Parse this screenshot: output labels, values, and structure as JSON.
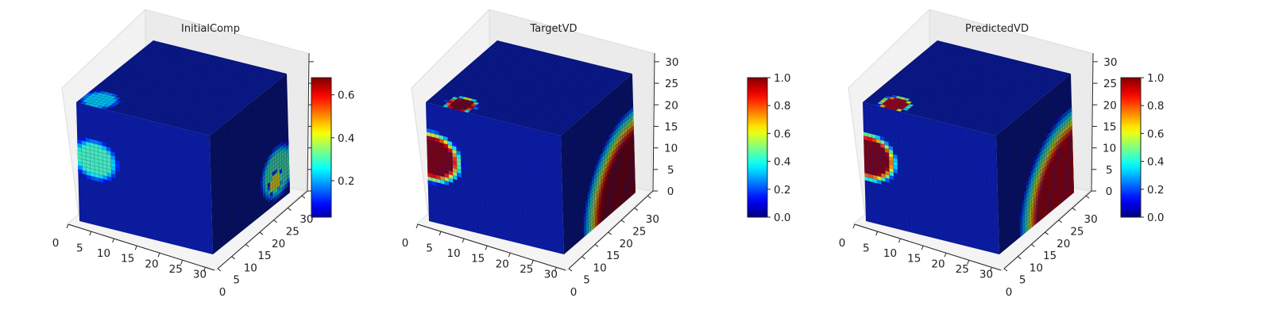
{
  "figure": {
    "colormap": "jet",
    "colors": {
      "background": "#ffffff",
      "cube_base": "#0a1a9a",
      "pane": "#f2f2f2",
      "grid": "#d4d4d4"
    }
  },
  "chart_data": [
    {
      "type": "heatmap",
      "plot_kind": "3d-voxel",
      "title": "InitialComp",
      "x_ticks": [
        "0",
        "5",
        "10",
        "15",
        "20",
        "25",
        "30"
      ],
      "y_ticks": [
        "0",
        "5",
        "10",
        "15",
        "20",
        "25",
        "30"
      ],
      "z_ticks": [],
      "xlim": [
        0,
        32
      ],
      "ylim": [
        0,
        32
      ],
      "zlim": [
        0,
        32
      ],
      "colorbar": {
        "range": [
          0.03,
          0.68
        ],
        "ticks": [
          "0.2",
          "0.4",
          "0.6"
        ],
        "tick_values": [
          0.2,
          0.4,
          0.6
        ]
      },
      "grid": true,
      "features": [
        {
          "face": "front",
          "u": 0.13,
          "v": 0.45,
          "radius": 0.16,
          "value": 0.45
        },
        {
          "face": "top",
          "u": 0.12,
          "v": 0.9,
          "radius": 0.12,
          "value": 0.35
        },
        {
          "face": "right",
          "u": 0.85,
          "v": 0.75,
          "radius": 0.2,
          "value": 0.45
        },
        {
          "face": "right",
          "u": 0.82,
          "v": 0.82,
          "radius": 0.08,
          "value": 0.66
        }
      ]
    },
    {
      "type": "heatmap",
      "plot_kind": "3d-voxel",
      "title": "TargetVD",
      "x_ticks": [
        "0",
        "5",
        "10",
        "15",
        "20",
        "25",
        "30"
      ],
      "y_ticks": [
        "0",
        "5",
        "10",
        "15",
        "20",
        "25",
        "30"
      ],
      "z_ticks": [
        "0",
        "5",
        "10",
        "15",
        "20",
        "25",
        "30"
      ],
      "xlim": [
        0,
        32
      ],
      "ylim": [
        0,
        32
      ],
      "zlim": [
        0,
        32
      ],
      "colorbar": {
        "range": [
          0.0,
          1.0
        ],
        "ticks": [
          "0.0",
          "0.2",
          "0.4",
          "0.6",
          "0.8",
          "1.0"
        ],
        "tick_values": [
          0,
          0.2,
          0.4,
          0.6,
          0.8,
          1.0
        ]
      },
      "grid": true,
      "features": [
        {
          "face": "front",
          "u": 0.04,
          "v": 0.45,
          "radius": 0.2,
          "value": 1.0
        },
        {
          "face": "top",
          "u": 0.22,
          "v": 0.92,
          "radius": 0.1,
          "value": 1.0
        },
        {
          "face": "right",
          "u": 1.0,
          "v": 1.0,
          "radius": 0.65,
          "value": 1.0
        }
      ]
    },
    {
      "type": "heatmap",
      "plot_kind": "3d-voxel",
      "title": "PredictedVD",
      "x_ticks": [
        "0",
        "5",
        "10",
        "15",
        "20",
        "25",
        "30"
      ],
      "y_ticks": [
        "0",
        "5",
        "10",
        "15",
        "20",
        "25",
        "30"
      ],
      "z_ticks": [
        "0",
        "5",
        "10",
        "15",
        "20",
        "25",
        "30"
      ],
      "xlim": [
        0,
        32
      ],
      "ylim": [
        0,
        32
      ],
      "zlim": [
        0,
        32
      ],
      "colorbar": {
        "range": [
          0.0,
          1.0
        ],
        "ticks": [
          "0.0",
          "0.2",
          "0.4",
          "0.6",
          "0.8",
          "1.0"
        ],
        "tick_values": [
          0,
          0.2,
          0.4,
          0.6,
          0.8,
          1.0
        ]
      },
      "grid": true,
      "features": [
        {
          "face": "front",
          "u": 0.04,
          "v": 0.45,
          "radius": 0.19,
          "value": 1.0
        },
        {
          "face": "top",
          "u": 0.2,
          "v": 0.92,
          "radius": 0.1,
          "value": 0.95
        },
        {
          "face": "right",
          "u": 1.0,
          "v": 1.0,
          "radius": 0.65,
          "value": 0.95
        }
      ]
    }
  ]
}
